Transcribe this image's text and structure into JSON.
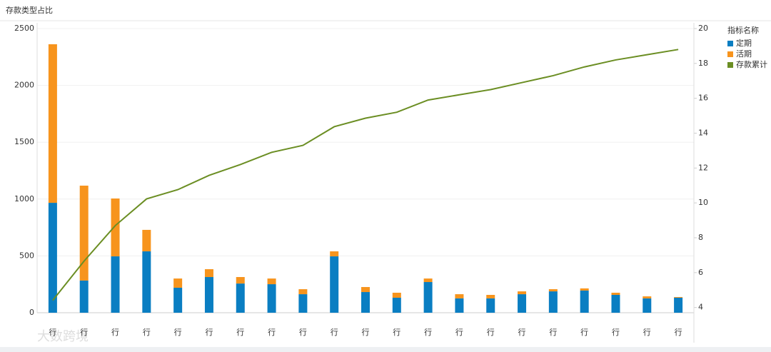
{
  "chart_data": {
    "type": "bar",
    "title": "存款类型占比",
    "watermark": "大数跨境",
    "categories": [
      "行",
      "行",
      "行",
      "行",
      "行",
      "行",
      "行",
      "行",
      "行",
      "行",
      "行",
      "行",
      "行",
      "行",
      "行",
      "行",
      "行",
      "行",
      "行",
      "行",
      "行"
    ],
    "series": [
      {
        "name": "定期",
        "color": "#0a7ec2",
        "values": [
          967,
          283,
          496,
          540,
          220,
          314,
          257,
          251,
          163,
          496,
          182,
          132,
          270,
          126,
          126,
          163,
          188,
          195,
          157,
          126,
          132
        ]
      },
      {
        "name": "活期",
        "color": "#f7941d",
        "values": [
          1395,
          835,
          509,
          189,
          81,
          69,
          57,
          50,
          44,
          44,
          44,
          44,
          31,
          37,
          31,
          25,
          19,
          19,
          19,
          18,
          6
        ]
      },
      {
        "name": "存款累计",
        "color": "#6b8e23",
        "axis": "y2",
        "type": "line",
        "values": [
          4.41,
          6.66,
          8.7,
          10.23,
          10.76,
          11.58,
          12.2,
          12.9,
          13.3,
          14.37,
          14.86,
          15.2,
          15.9,
          16.2,
          16.5,
          16.9,
          17.3,
          17.8,
          18.2,
          18.5,
          18.8
        ]
      }
    ],
    "legend_title": "指标名称",
    "ylim": [
      0,
      2500
    ],
    "yticks": [
      0,
      500,
      1000,
      1500,
      2000,
      2500
    ],
    "y2lim": [
      3.7,
      20
    ],
    "y2ticks": [
      4,
      6,
      8,
      10,
      12,
      14,
      16,
      18,
      20
    ],
    "grid": true,
    "legend": "right"
  }
}
